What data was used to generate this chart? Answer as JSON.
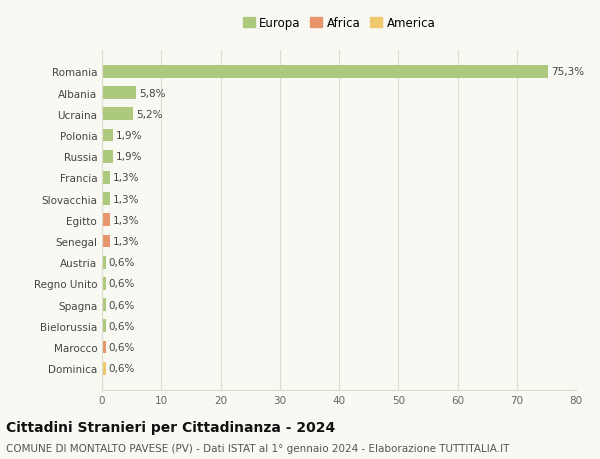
{
  "categories": [
    "Romania",
    "Albania",
    "Ucraina",
    "Polonia",
    "Russia",
    "Francia",
    "Slovacchia",
    "Egitto",
    "Senegal",
    "Austria",
    "Regno Unito",
    "Spagna",
    "Bielorussia",
    "Marocco",
    "Dominica"
  ],
  "values": [
    75.3,
    5.8,
    5.2,
    1.9,
    1.9,
    1.3,
    1.3,
    1.3,
    1.3,
    0.6,
    0.6,
    0.6,
    0.6,
    0.6,
    0.6
  ],
  "labels": [
    "75,3%",
    "5,8%",
    "5,2%",
    "1,9%",
    "1,9%",
    "1,3%",
    "1,3%",
    "1,3%",
    "1,3%",
    "0,6%",
    "0,6%",
    "0,6%",
    "0,6%",
    "0,6%",
    "0,6%"
  ],
  "continents": [
    "Europa",
    "Europa",
    "Europa",
    "Europa",
    "Europa",
    "Europa",
    "Europa",
    "Africa",
    "Africa",
    "Europa",
    "Europa",
    "Europa",
    "Europa",
    "Africa",
    "America"
  ],
  "colors": {
    "Europa": "#adc97e",
    "Africa": "#e8956d",
    "America": "#f0c96e"
  },
  "legend_labels": [
    "Europa",
    "Africa",
    "America"
  ],
  "legend_colors": [
    "#adc97e",
    "#e8956d",
    "#f0c96e"
  ],
  "xlim": [
    0,
    80
  ],
  "xticks": [
    0,
    10,
    20,
    30,
    40,
    50,
    60,
    70,
    80
  ],
  "title": "Cittadini Stranieri per Cittadinanza - 2024",
  "subtitle": "COMUNE DI MONTALTO PAVESE (PV) - Dati ISTAT al 1° gennaio 2024 - Elaborazione TUTTITALIA.IT",
  "background_color": "#f9f9f4",
  "grid_color": "#ddddcc",
  "bar_height": 0.6,
  "label_fontsize": 7.5,
  "tick_fontsize": 7.5,
  "title_fontsize": 10,
  "subtitle_fontsize": 7.5,
  "legend_fontsize": 8.5
}
